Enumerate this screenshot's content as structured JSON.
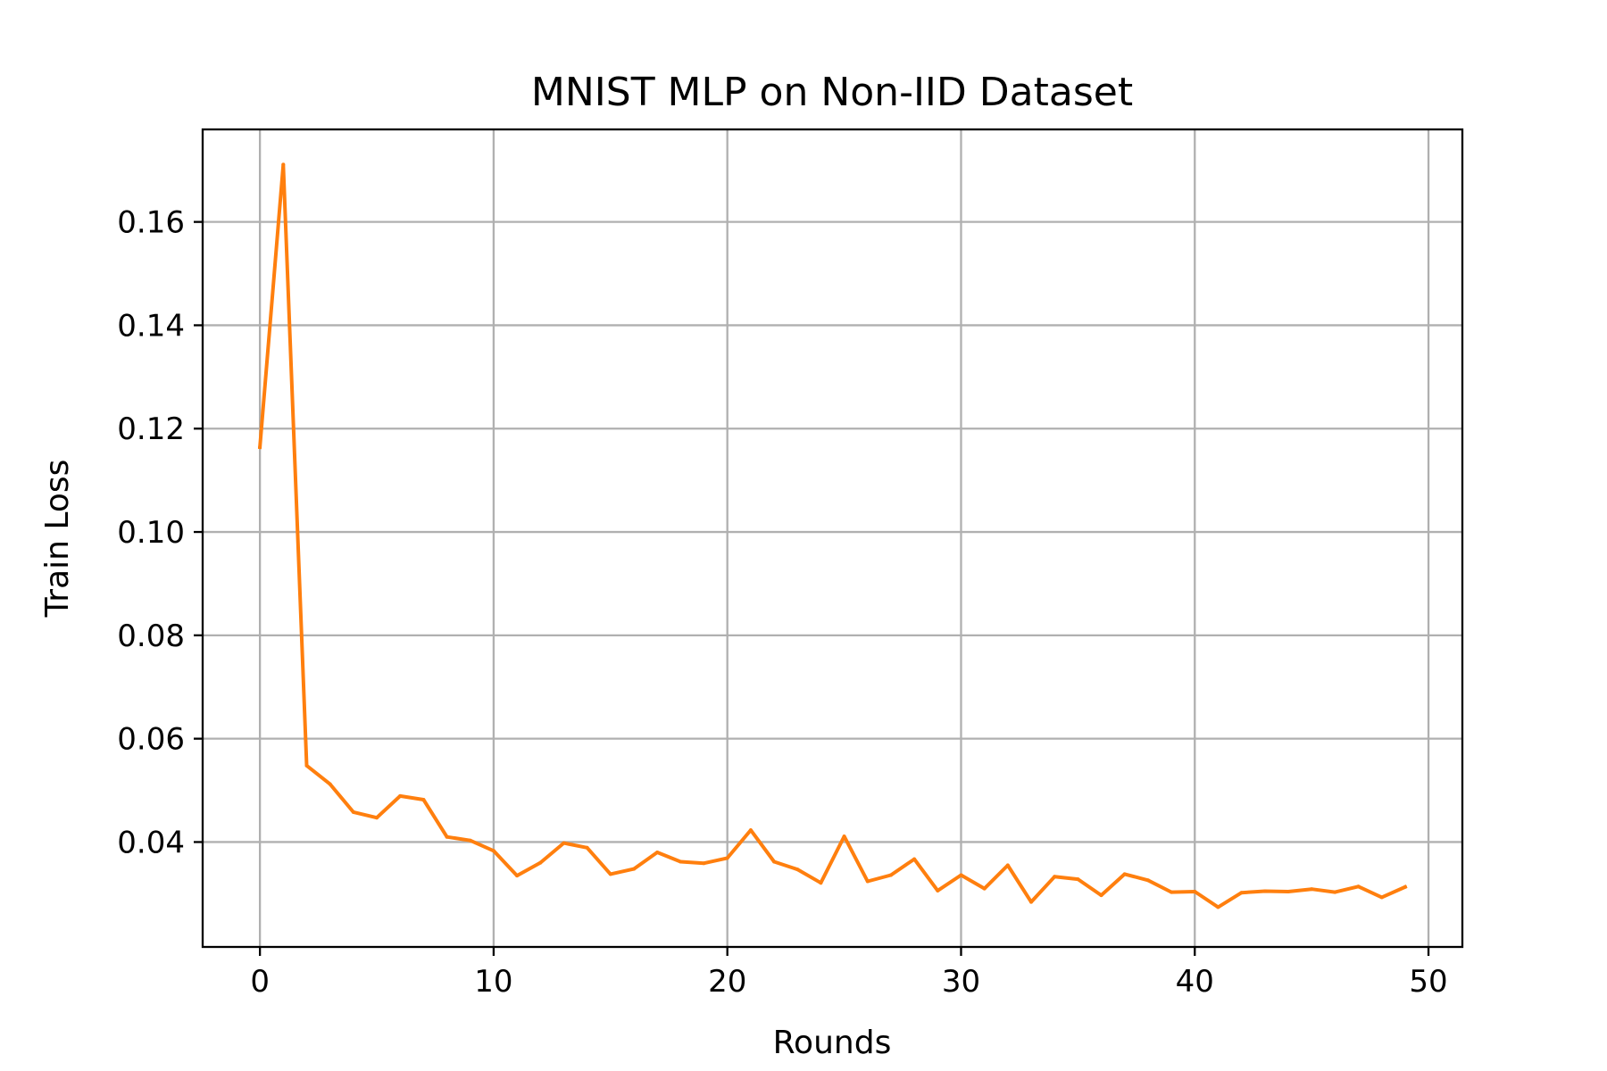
{
  "chart_data": {
    "type": "line",
    "title": "MNIST MLP on Non-IID Dataset",
    "xlabel": "Rounds",
    "ylabel": "Train Loss",
    "xlim": [
      -2.45,
      51.45
    ],
    "ylim": [
      0.0197,
      0.1779
    ],
    "grid": true,
    "legend": "none",
    "xticks": [
      0,
      10,
      20,
      30,
      40,
      50
    ],
    "xtick_labels": [
      "0",
      "10",
      "20",
      "30",
      "40",
      "50"
    ],
    "yticks": [
      0.04,
      0.06,
      0.08,
      0.1,
      0.12,
      0.14,
      0.16
    ],
    "ytick_labels": [
      "0.04",
      "0.06",
      "0.08",
      "0.10",
      "0.12",
      "0.14",
      "0.16"
    ],
    "series": [
      {
        "color": "#ff7f0e",
        "x": [
          0,
          1,
          2,
          3,
          4,
          5,
          6,
          7,
          8,
          9,
          10,
          11,
          12,
          13,
          14,
          15,
          16,
          17,
          18,
          19,
          20,
          21,
          22,
          23,
          24,
          25,
          26,
          27,
          28,
          29,
          30,
          31,
          32,
          33,
          34,
          35,
          36,
          37,
          38,
          39,
          40,
          41,
          42,
          43,
          44,
          45,
          46,
          47,
          48,
          49
        ],
        "y": [
          0.1164,
          0.1711,
          0.0548,
          0.0512,
          0.0458,
          0.0447,
          0.0489,
          0.0482,
          0.041,
          0.0403,
          0.0383,
          0.0335,
          0.036,
          0.0398,
          0.0389,
          0.0338,
          0.0348,
          0.038,
          0.0362,
          0.0359,
          0.0369,
          0.0423,
          0.0362,
          0.0347,
          0.0321,
          0.0411,
          0.0324,
          0.0336,
          0.0367,
          0.0306,
          0.0336,
          0.031,
          0.0355,
          0.0284,
          0.0333,
          0.0328,
          0.0297,
          0.0338,
          0.0326,
          0.0303,
          0.0304,
          0.0274,
          0.0302,
          0.0305,
          0.0304,
          0.0309,
          0.0303,
          0.0314,
          0.0293,
          0.0313
        ]
      }
    ]
  }
}
